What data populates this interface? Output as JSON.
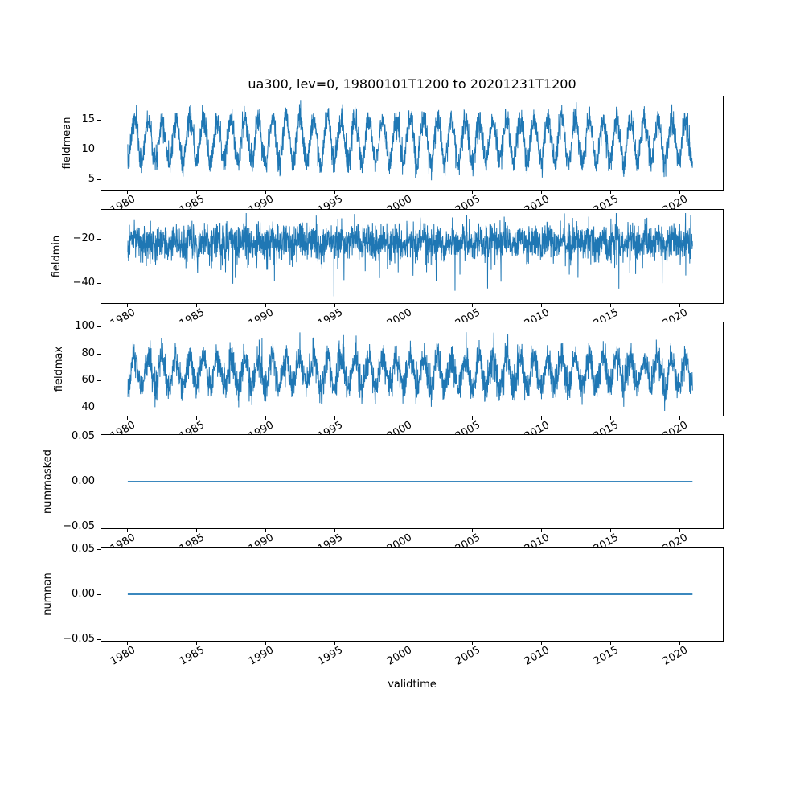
{
  "figure": {
    "title": "ua300, lev=0, 19800101T1200 to 20201231T1200",
    "xlabel": "validtime",
    "line_color": "#1f77b4",
    "background_color": "#ffffff",
    "text_color": "#000000",
    "xticks": {
      "values": [
        1980,
        1985,
        1990,
        1995,
        2000,
        2005,
        2010,
        2015,
        2020
      ],
      "labels": [
        "1980",
        "1985",
        "1990",
        "1995",
        "2000",
        "2005",
        "2010",
        "2015",
        "2020"
      ]
    },
    "xlim": [
      1978.08,
      2023.2
    ]
  },
  "chart_data": [
    {
      "type": "line",
      "ylabel": "fieldmean",
      "ylim": [
        3.1,
        19.1
      ],
      "yticks": {
        "values": [
          5,
          10,
          15
        ],
        "labels": [
          "5",
          "10",
          "15"
        ]
      },
      "grid": false,
      "legend": "none",
      "series": {
        "name": "fieldmean",
        "pattern": "seasonal-noise",
        "x_start": 1980.0,
        "x_end": 2021.0,
        "mean": 11.9,
        "seasonal_period_years": 1,
        "seasonal_amplitude": 3.2,
        "trough_gain": 1.3,
        "noise_std": 1.15,
        "clamp": [
          4.0,
          18.8
        ],
        "observed_min": 4.0,
        "observed_max": 18.8,
        "n_points": 3000,
        "seed": 7
      }
    },
    {
      "type": "line",
      "ylabel": "fieldmin",
      "ylim": [
        -49.5,
        -6.5
      ],
      "yticks": {
        "values": [
          -20,
          -40
        ],
        "labels": [
          "−20",
          "−40"
        ]
      },
      "grid": false,
      "legend": "none",
      "series": {
        "name": "fieldmin",
        "pattern": "seasonal-noise",
        "x_start": 1980.0,
        "x_end": 2021.0,
        "mean": -21.5,
        "seasonal_period_years": 1,
        "seasonal_amplitude": 1.8,
        "trough_gain": 1.0,
        "noise_std": 4.0,
        "spike_prob": 0.012,
        "spike_amp": -12,
        "clamp": [
          -47.5,
          -8.0
        ],
        "observed_min": -47.5,
        "observed_max": -8.0,
        "n_points": 3000,
        "seed": 13
      }
    },
    {
      "type": "line",
      "ylabel": "fieldmax",
      "ylim": [
        33.4,
        103.6
      ],
      "yticks": {
        "values": [
          40,
          60,
          80,
          100
        ],
        "labels": [
          "40",
          "60",
          "80",
          "100"
        ]
      },
      "grid": false,
      "legend": "none",
      "series": {
        "name": "fieldmax",
        "pattern": "seasonal-noise",
        "x_start": 1980.0,
        "x_end": 2021.0,
        "mean": 66,
        "seasonal_period_years": 1,
        "seasonal_amplitude": 11,
        "trough_gain": 1.0,
        "noise_std": 6.2,
        "clamp": [
          37.0,
          101.0
        ],
        "observed_min": 37.0,
        "observed_max": 101.0,
        "n_points": 3000,
        "seed": 21
      }
    },
    {
      "type": "line",
      "ylabel": "nummasked",
      "ylim": [
        -0.0527,
        0.0527
      ],
      "yticks": {
        "values": [
          0.05,
          0.0,
          -0.05
        ],
        "labels": [
          "0.05",
          "0.00",
          "−0.05"
        ]
      },
      "grid": false,
      "legend": "none",
      "series": {
        "name": "nummasked",
        "pattern": "constant",
        "x_start": 1980.0,
        "x_end": 2021.0,
        "value": 0.0
      }
    },
    {
      "type": "line",
      "ylabel": "numnan",
      "ylim": [
        -0.0527,
        0.0527
      ],
      "yticks": {
        "values": [
          0.05,
          0.0,
          -0.05
        ],
        "labels": [
          "0.05",
          "0.00",
          "−0.05"
        ]
      },
      "grid": false,
      "legend": "none",
      "series": {
        "name": "numnan",
        "pattern": "constant",
        "x_start": 1980.0,
        "x_end": 2021.0,
        "value": 0.0
      }
    }
  ]
}
